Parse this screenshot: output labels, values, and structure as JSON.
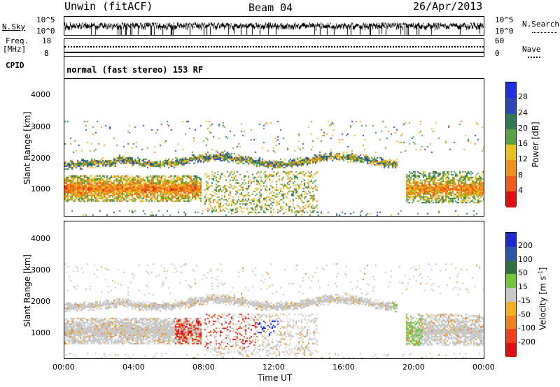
{
  "header": {
    "station": "Unwin (fitACF)",
    "beam": "Beam 04",
    "date": "26/Apr/2013"
  },
  "noise_panel": {
    "left_label": "N.Sky",
    "left_ticks": [
      "10^5",
      "10^0"
    ],
    "right_label": "N.Search",
    "right_ticks": [
      "10^5",
      "10^0"
    ]
  },
  "freq_panel": {
    "left_label_top": "Freq.",
    "left_label_bottom": "[MHz]",
    "left_ticks": [
      "18",
      "8"
    ],
    "right_label": "Nave",
    "right_ticks": [
      "60",
      "0"
    ]
  },
  "cpid": {
    "label": "CPID",
    "text": "normal (fast stereo) 153 RF"
  },
  "colors": {
    "frame": "#000000",
    "background": "#ffffff",
    "ground_scatter": "#c8c8c8"
  },
  "chart_data": [
    {
      "type": "heatmap",
      "name": "power",
      "ylabel": "Slant Range [km]",
      "yticks": [
        1000,
        2000,
        3000,
        4000
      ],
      "ylim": [
        180,
        4500
      ],
      "xlim_hours": [
        0,
        24
      ],
      "colorbar": {
        "label": "Power [dB]",
        "ticks": [
          "28",
          "24",
          "20",
          "16",
          "12",
          "8",
          "4"
        ],
        "levels": [
          {
            "min": 0,
            "max": 4,
            "color": "#1e2ee0"
          },
          {
            "min": 4,
            "max": 8,
            "color": "#2a48b8"
          },
          {
            "min": 8,
            "max": 12,
            "color": "#2e7a55"
          },
          {
            "min": 12,
            "max": 16,
            "color": "#5aa040"
          },
          {
            "min": 16,
            "max": 20,
            "color": "#e8c020"
          },
          {
            "min": 20,
            "max": 24,
            "color": "#f0901c"
          },
          {
            "min": 24,
            "max": 28,
            "color": "#f05a1a"
          },
          {
            "min": 28,
            "max": 32,
            "color": "#e01010"
          }
        ]
      }
    },
    {
      "type": "heatmap",
      "name": "velocity",
      "ylabel": "Slant Range [km]",
      "yticks": [
        1000,
        2000,
        3000,
        4000
      ],
      "ylim": [
        180,
        4500
      ],
      "xlim_hours": [
        0,
        24
      ],
      "xlabel": "Time UT",
      "xticks": [
        "00:00",
        "04:00",
        "08:00",
        "12:00",
        "16:00",
        "20:00",
        "00:00"
      ],
      "colorbar": {
        "label": "Velocity [m s",
        "label_sup": "-1",
        "label_close": "]",
        "ticks": [
          "200",
          "100",
          "50",
          "15",
          "-15",
          "-50",
          "-100",
          "-200"
        ],
        "levels": [
          {
            "min": 200,
            "max": 300,
            "color": "#1a2ad0"
          },
          {
            "min": 100,
            "max": 200,
            "color": "#2a55a8"
          },
          {
            "min": 50,
            "max": 100,
            "color": "#2e7040"
          },
          {
            "min": 15,
            "max": 50,
            "color": "#74c43c"
          },
          {
            "min": -15,
            "max": 15,
            "color": "#c8c8c8"
          },
          {
            "min": -50,
            "max": -15,
            "color": "#f0b020"
          },
          {
            "min": -100,
            "max": -50,
            "color": "#f08020"
          },
          {
            "min": -200,
            "max": -100,
            "color": "#f04018"
          },
          {
            "min": -300,
            "max": -200,
            "color": "#e01010"
          }
        ]
      }
    }
  ]
}
